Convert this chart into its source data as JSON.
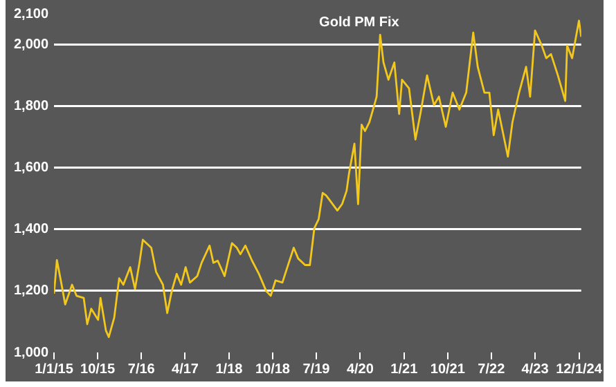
{
  "chart_data": {
    "type": "line",
    "title": "Gold PM Fix",
    "x": [
      "2015-01-01",
      "2015-01-19",
      "2015-02-15",
      "2015-03-12",
      "2015-04-24",
      "2015-05-22",
      "2015-07-06",
      "2015-07-28",
      "2015-08-22",
      "2015-10-04",
      "2015-10-19",
      "2015-11-22",
      "2015-12-10",
      "2016-01-13",
      "2016-02-13",
      "2016-03-10",
      "2016-04-22",
      "2016-05-22",
      "2016-06-19",
      "2016-07-10",
      "2016-09-01",
      "2016-10-01",
      "2016-11-13",
      "2016-12-10",
      "2017-01-07",
      "2017-02-07",
      "2017-03-07",
      "2017-04-04",
      "2017-05-01",
      "2017-06-16",
      "2017-07-13",
      "2017-09-01",
      "2017-09-25",
      "2017-10-22",
      "2017-12-04",
      "2018-01-19",
      "2018-02-19",
      "2018-03-13",
      "2018-04-13",
      "2018-05-25",
      "2018-07-07",
      "2018-08-22",
      "2018-09-19",
      "2018-10-19",
      "2018-12-01",
      "2019-01-01",
      "2019-02-10",
      "2019-03-10",
      "2019-04-22",
      "2019-05-22",
      "2019-06-19",
      "2019-07-16",
      "2019-08-10",
      "2019-09-01",
      "2019-10-01",
      "2019-11-10",
      "2019-12-10",
      "2020-01-07",
      "2020-01-22",
      "2020-02-25",
      "2020-03-19",
      "2020-04-10",
      "2020-05-01",
      "2020-05-28",
      "2020-06-28",
      "2020-07-13",
      "2020-08-04",
      "2020-08-25",
      "2020-09-25",
      "2020-11-01",
      "2020-12-01",
      "2020-12-19",
      "2021-02-01",
      "2021-03-13",
      "2021-04-13",
      "2021-05-25",
      "2021-07-07",
      "2021-08-07",
      "2021-09-19",
      "2021-11-01",
      "2021-12-13",
      "2022-01-25",
      "2022-03-10",
      "2022-04-07",
      "2022-05-19",
      "2022-06-19",
      "2022-07-16",
      "2022-08-13",
      "2022-10-13",
      "2022-11-10",
      "2022-12-22",
      "2023-02-04",
      "2023-03-01",
      "2023-04-01",
      "2023-05-13",
      "2023-06-10",
      "2023-07-10",
      "2023-08-22",
      "2023-10-07",
      "2023-10-19",
      "2023-11-19",
      "2024-01-01",
      "2024-01-15"
    ],
    "series": [
      {
        "color": "#f2c81e",
        "values": [
          1191,
          1300,
          1227,
          1156,
          1220,
          1184,
          1177,
          1092,
          1142,
          1106,
          1177,
          1071,
          1050,
          1113,
          1241,
          1220,
          1277,
          1206,
          1291,
          1366,
          1340,
          1262,
          1220,
          1128,
          1199,
          1255,
          1220,
          1277,
          1227,
          1248,
          1291,
          1347,
          1291,
          1298,
          1248,
          1355,
          1340,
          1319,
          1347,
          1298,
          1255,
          1199,
          1184,
          1234,
          1227,
          1277,
          1340,
          1305,
          1284,
          1284,
          1404,
          1433,
          1518,
          1510,
          1489,
          1461,
          1482,
          1525,
          1581,
          1678,
          1482,
          1740,
          1719,
          1747,
          1803,
          1831,
          2032,
          1942,
          1886,
          1942,
          1775,
          1886,
          1858,
          1692,
          1775,
          1900,
          1803,
          1831,
          1733,
          1844,
          1789,
          1844,
          2039,
          1928,
          1844,
          1844,
          1706,
          1789,
          1636,
          1747,
          1844,
          1928,
          1831,
          2046,
          1997,
          1956,
          1969,
          1900,
          1817,
          1997,
          1956,
          2078,
          2025
        ]
      }
    ],
    "xlim": [
      "2015-01-01",
      "2024-01-15"
    ],
    "xticks": [
      {
        "value": "2015-01-01",
        "label": "1/1/15"
      },
      {
        "value": "2015-10-01",
        "label": "10/15"
      },
      {
        "value": "2016-07-01",
        "label": "7/16"
      },
      {
        "value": "2017-04-01",
        "label": "4/17"
      },
      {
        "value": "2018-01-01",
        "label": "1/18"
      },
      {
        "value": "2018-10-01",
        "label": "10/18"
      },
      {
        "value": "2019-07-01",
        "label": "7/19"
      },
      {
        "value": "2020-04-01",
        "label": "4/20"
      },
      {
        "value": "2021-01-01",
        "label": "1/21"
      },
      {
        "value": "2021-10-01",
        "label": "10/21"
      },
      {
        "value": "2022-07-01",
        "label": "7/22"
      },
      {
        "value": "2023-04-01",
        "label": "4/23"
      },
      {
        "value": "2024-01-01",
        "label": "12/1/24"
      }
    ],
    "ylim": [
      1000,
      2100
    ],
    "yticks": [
      {
        "value": 1000,
        "label": "1,000"
      },
      {
        "value": 1200,
        "label": "1,200"
      },
      {
        "value": 1400,
        "label": "1,400"
      },
      {
        "value": 1600,
        "label": "1,600"
      },
      {
        "value": 1800,
        "label": "1,800"
      },
      {
        "value": 2000,
        "label": "2,000"
      },
      {
        "value": 2100,
        "label": "2,100"
      }
    ],
    "grid": "y",
    "legend": false,
    "marker": "none",
    "line_style": "solid"
  }
}
